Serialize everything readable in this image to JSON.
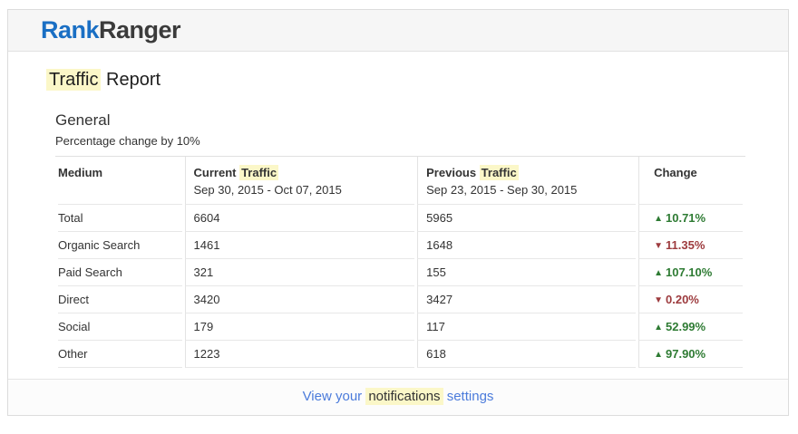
{
  "header": {
    "logo_rank": "Rank",
    "logo_ranger": "Ranger"
  },
  "title": {
    "highlighted": "Traffic",
    "rest": " Report"
  },
  "section": {
    "heading": "General",
    "subtitle": "Percentage change by 10%"
  },
  "table": {
    "header": {
      "medium": "Medium",
      "current_prefix": "Current ",
      "current_highlight": "Traffic",
      "current_dates": "Sep 30, 2015 - Oct 07, 2015",
      "previous_prefix": "Previous ",
      "previous_highlight": "Traffic",
      "previous_dates": "Sep 23, 2015 - Sep 30, 2015",
      "change": "Change"
    },
    "rows": [
      {
        "medium": "Total",
        "current": "6604",
        "previous": "5965",
        "arrow": "▲",
        "change": "10.71%",
        "direction": "up"
      },
      {
        "medium": "Organic Search",
        "current": "1461",
        "previous": "1648",
        "arrow": "▼",
        "change": "11.35%",
        "direction": "down"
      },
      {
        "medium": "Paid Search",
        "current": "321",
        "previous": "155",
        "arrow": "▲",
        "change": "107.10%",
        "direction": "up"
      },
      {
        "medium": "Direct",
        "current": "3420",
        "previous": "3427",
        "arrow": "▼",
        "change": "0.20%",
        "direction": "down"
      },
      {
        "medium": "Social",
        "current": "179",
        "previous": "117",
        "arrow": "▲",
        "change": "52.99%",
        "direction": "up"
      },
      {
        "medium": "Other",
        "current": "1223",
        "previous": "618",
        "arrow": "▲",
        "change": "97.90%",
        "direction": "up"
      }
    ]
  },
  "footer": {
    "link_prefix": "View your ",
    "highlighted": "notifications",
    "link_suffix": " settings"
  },
  "colors": {
    "brand_blue": "#1a6fc4",
    "link_blue": "#4b7bdb",
    "highlight_yellow": "#fbf7c8",
    "up_green": "#2e7b33",
    "down_red": "#9d3b3e"
  }
}
